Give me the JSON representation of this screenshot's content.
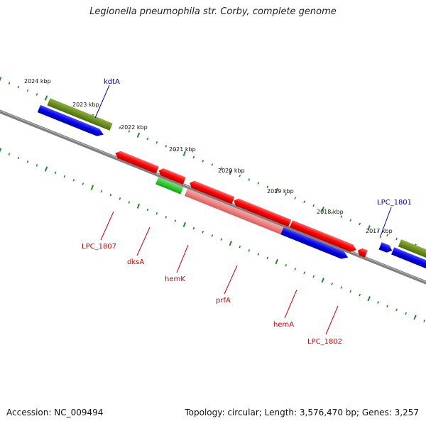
{
  "title": "Legionella pneumophila str. Corby, complete genome",
  "footer": {
    "accession": "Accession: NC_009494",
    "summary": "Topology: circular; Length: 3,576,470 bp; Genes: 3,257"
  },
  "ticks": [
    "2024 kbp",
    "2023 kbp",
    "2022 kbp",
    "2021 kbp",
    "2020 kbp",
    "2019 kbp",
    "2018 kbp",
    "2017 kbp"
  ],
  "gene_labels": {
    "kdtA": "kdtA",
    "lpc1807": "LPC_1807",
    "dksA": "dksA",
    "hemK": "hemK",
    "prfA": "prfA",
    "hemA": "hemA",
    "lpc1802": "LPC_1802",
    "lpc1801": "LPC_1801"
  },
  "colors": {
    "red": "#ff0000",
    "blue": "#0000ee",
    "olive": "#6b8e23",
    "green": "#33cc33",
    "pink": "#f08080",
    "khaki": "#bdb76b",
    "backbone": "#7f7f7f",
    "tick_green": "#228b22",
    "label_blue": "#0000aa",
    "label_red": "#cc0000"
  }
}
